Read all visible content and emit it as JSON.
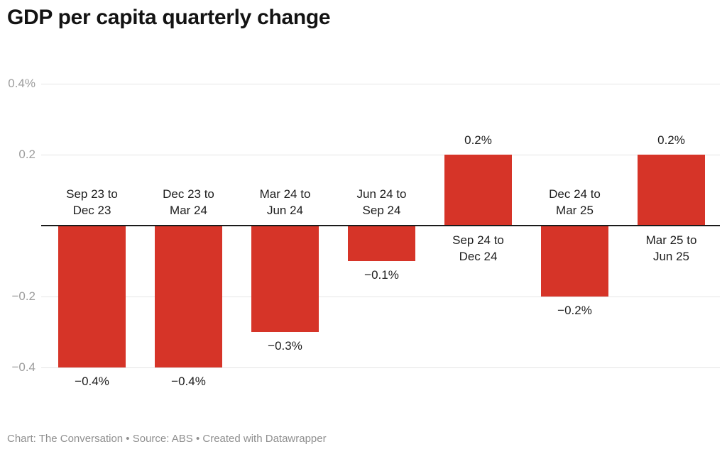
{
  "title": "GDP per capita quarterly change",
  "footer": "Chart: The Conversation • Source: ABS • Created with Datawrapper",
  "chart_data": {
    "type": "bar",
    "title": "GDP per capita quarterly change",
    "unit": "%",
    "categories": [
      "Sep 23 to Dec 23",
      "Dec 23 to Mar 24",
      "Mar 24 to Jun 24",
      "Jun 24 to Sep 24",
      "Sep 24 to Dec 24",
      "Dec 24 to Mar 25",
      "Mar 25 to Jun 25"
    ],
    "category_label_lines": [
      [
        "Sep 23 to",
        "Dec 23"
      ],
      [
        "Dec 23 to",
        "Mar 24"
      ],
      [
        "Mar 24 to",
        "Jun 24"
      ],
      [
        "Jun 24 to",
        "Sep 24"
      ],
      [
        "Sep 24 to",
        "Dec 24"
      ],
      [
        "Dec 24 to",
        "Mar 25"
      ],
      [
        "Mar 25 to",
        "Jun 25"
      ]
    ],
    "values": [
      -0.4,
      -0.4,
      -0.3,
      -0.1,
      0.2,
      -0.2,
      0.2
    ],
    "value_labels": [
      "−0.4%",
      "−0.4%",
      "−0.3%",
      "−0.1%",
      "0.2%",
      "−0.2%",
      "0.2%"
    ],
    "y_ticks": [
      {
        "value": 0.4,
        "label": "0.4%"
      },
      {
        "value": 0.2,
        "label": "0.2"
      },
      {
        "value": -0.2,
        "label": "−0.2"
      },
      {
        "value": -0.4,
        "label": "−0.4"
      }
    ],
    "ylim": [
      -0.45,
      0.45
    ],
    "grid": true,
    "legend": "none",
    "colors": {
      "bar": "#d63428",
      "gridline": "#e5e5e5",
      "baseline": "#1a1a1a",
      "axis_label": "#9d9d9d",
      "label_text": "#1d1d1d",
      "title": "#131313",
      "footer": "#8f8f8f"
    }
  }
}
